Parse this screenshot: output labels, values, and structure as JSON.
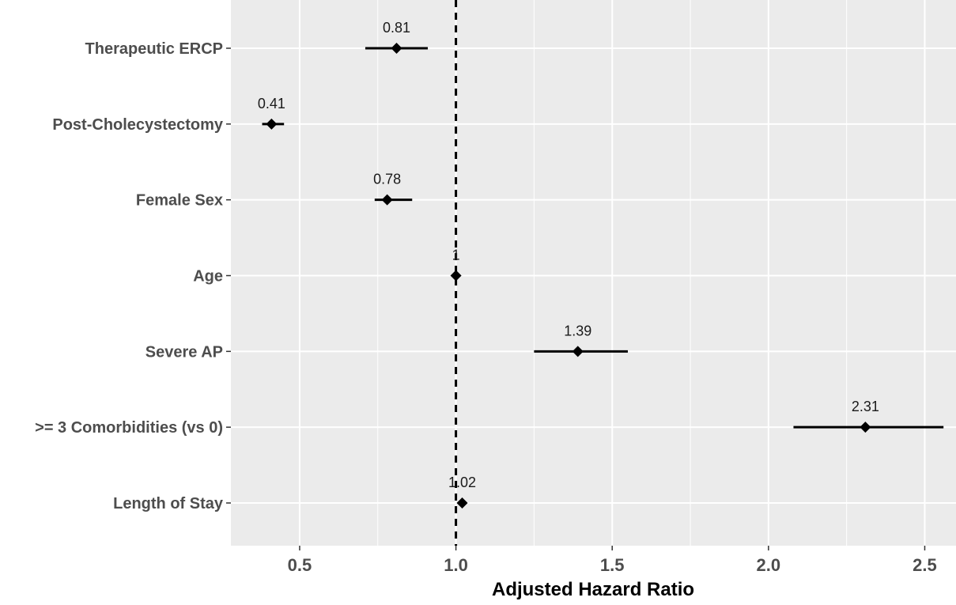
{
  "chart_data": {
    "type": "forest",
    "title": "",
    "xlabel": "Adjusted Hazard Ratio",
    "ylabel": "",
    "xlim": [
      0.28,
      2.6
    ],
    "xticks": [
      0.5,
      1.0,
      1.5,
      2.0,
      2.5
    ],
    "xtick_labels": [
      "0.5",
      "1.0",
      "1.5",
      "2.0",
      "2.5"
    ],
    "reference_line": 1.0,
    "grid": true,
    "panel_background": "#ebebeb",
    "grid_color": "#ffffff",
    "point_color": "#000000",
    "rows": [
      {
        "label": "Therapeutic ERCP",
        "estimate": 0.81,
        "lower": 0.71,
        "upper": 0.91,
        "value_label": "0.81"
      },
      {
        "label": "Post-Cholecystectomy",
        "estimate": 0.41,
        "lower": 0.38,
        "upper": 0.45,
        "value_label": "0.41"
      },
      {
        "label": "Female Sex",
        "estimate": 0.78,
        "lower": 0.74,
        "upper": 0.86,
        "value_label": "0.78"
      },
      {
        "label": "Age",
        "estimate": 1.0,
        "lower": 1.0,
        "upper": 1.0,
        "value_label": "1"
      },
      {
        "label": "Severe AP",
        "estimate": 1.39,
        "lower": 1.25,
        "upper": 1.55,
        "value_label": "1.39"
      },
      {
        "label": ">= 3 Comorbidities (vs 0)",
        "estimate": 2.31,
        "lower": 2.08,
        "upper": 2.56,
        "value_label": "2.31"
      },
      {
        "label": "Length of Stay",
        "estimate": 1.02,
        "lower": 1.01,
        "upper": 1.03,
        "value_label": "1.02"
      }
    ]
  }
}
